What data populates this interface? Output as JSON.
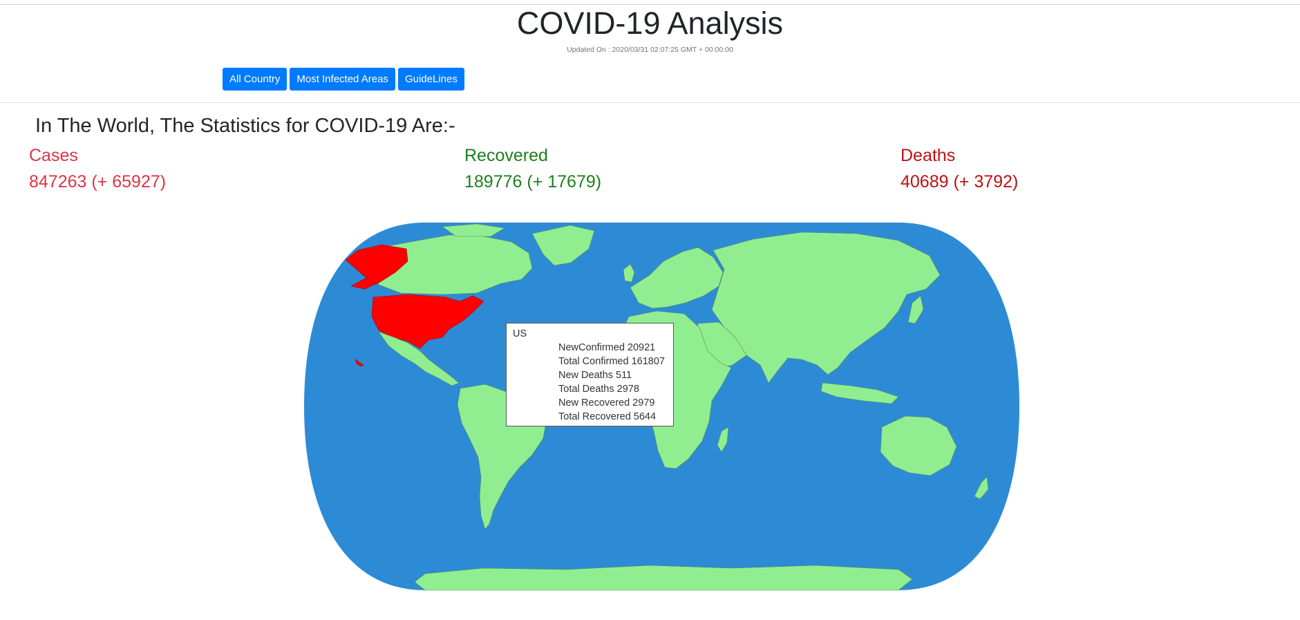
{
  "header": {
    "title": "COVID-19 Analysis",
    "updated": "Updated On : 2020/03/31 02:07:25 GMT + 00:00:00"
  },
  "nav": {
    "all_country": "All Country",
    "most_infected": "Most Infected Areas",
    "guidelines": "GuideLines"
  },
  "summary": {
    "headline": "In The World, The Statistics for COVID-19 Are:-",
    "cases": {
      "label": "Cases",
      "value": "847263 (+ 65927)"
    },
    "recovered": {
      "label": "Recovered",
      "value": "189776 (+ 17679)"
    },
    "deaths": {
      "label": "Deaths",
      "value": "40689 (+ 3792)"
    }
  },
  "map": {
    "ocean_color": "#2d8bd6",
    "land_color": "#90ee90",
    "highlight_color": "#ff0000",
    "highlighted_country": "US",
    "tooltip": {
      "country": "US",
      "lines": [
        "NewConfirmed 20921",
        "Total Confirmed 161807",
        "New Deaths 511",
        "Total Deaths 2978",
        "New Recovered 2979",
        "Total Recovered 5644"
      ]
    }
  }
}
